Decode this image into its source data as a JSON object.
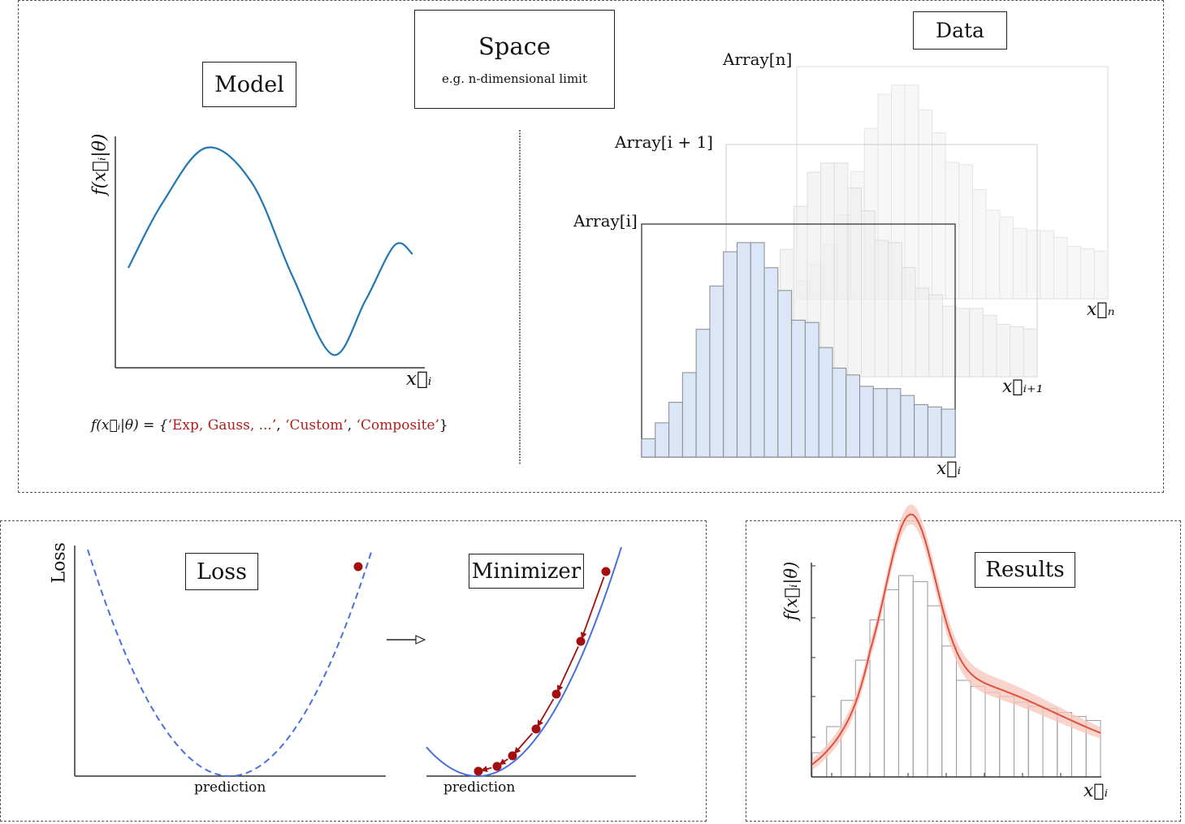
{
  "model": {
    "title": "Model",
    "ylabel": "f(x⃗ᵢ|θ)",
    "xlabel": "x⃗ᵢ",
    "formula_prefix": "f(x⃗ᵢ|θ) = {",
    "formula_opt1": "‘Exp, Gauss, ...’",
    "formula_sep1": ", ",
    "formula_opt2": "‘Custom’",
    "formula_sep2": ", ",
    "formula_opt3": "‘Composite’",
    "formula_suffix": "}"
  },
  "space": {
    "title": "Space",
    "subtitle": "e.g. n-dimensional limit"
  },
  "data": {
    "title": "Data",
    "arrays": [
      {
        "label": "Array[n]",
        "axis": "x⃗ₙ"
      },
      {
        "label": "Array[i + 1]",
        "axis": "x⃗ᵢ₊₁"
      },
      {
        "label": "Array[i]",
        "axis": "x⃗ᵢ"
      }
    ],
    "histogram_counts": [
      0.08,
      0.15,
      0.24,
      0.37,
      0.56,
      0.75,
      0.9,
      0.94,
      0.94,
      0.83,
      0.73,
      0.6,
      0.59,
      0.48,
      0.39,
      0.36,
      0.31,
      0.3,
      0.3,
      0.27,
      0.23,
      0.22,
      0.21
    ]
  },
  "loss": {
    "title": "Loss",
    "ylabel": "Loss",
    "xlabel": "prediction"
  },
  "minimizer": {
    "title": "Minimizer",
    "xlabel": "prediction"
  },
  "results": {
    "title": "Results",
    "ylabel": "f(x⃗ᵢ|θ)",
    "xlabel": "x⃗ᵢ"
  },
  "colors": {
    "model_curve": "#1f77b4",
    "hist_fill": "#dbe6f8",
    "hist_edge": "#8a8a8a",
    "loss_curve": "#4a6fe0",
    "minimizer_points": "#a30f0f",
    "fit_line": "#e0503c",
    "fit_band": "#f7c5bb",
    "formula_options": "#b11d1d"
  }
}
